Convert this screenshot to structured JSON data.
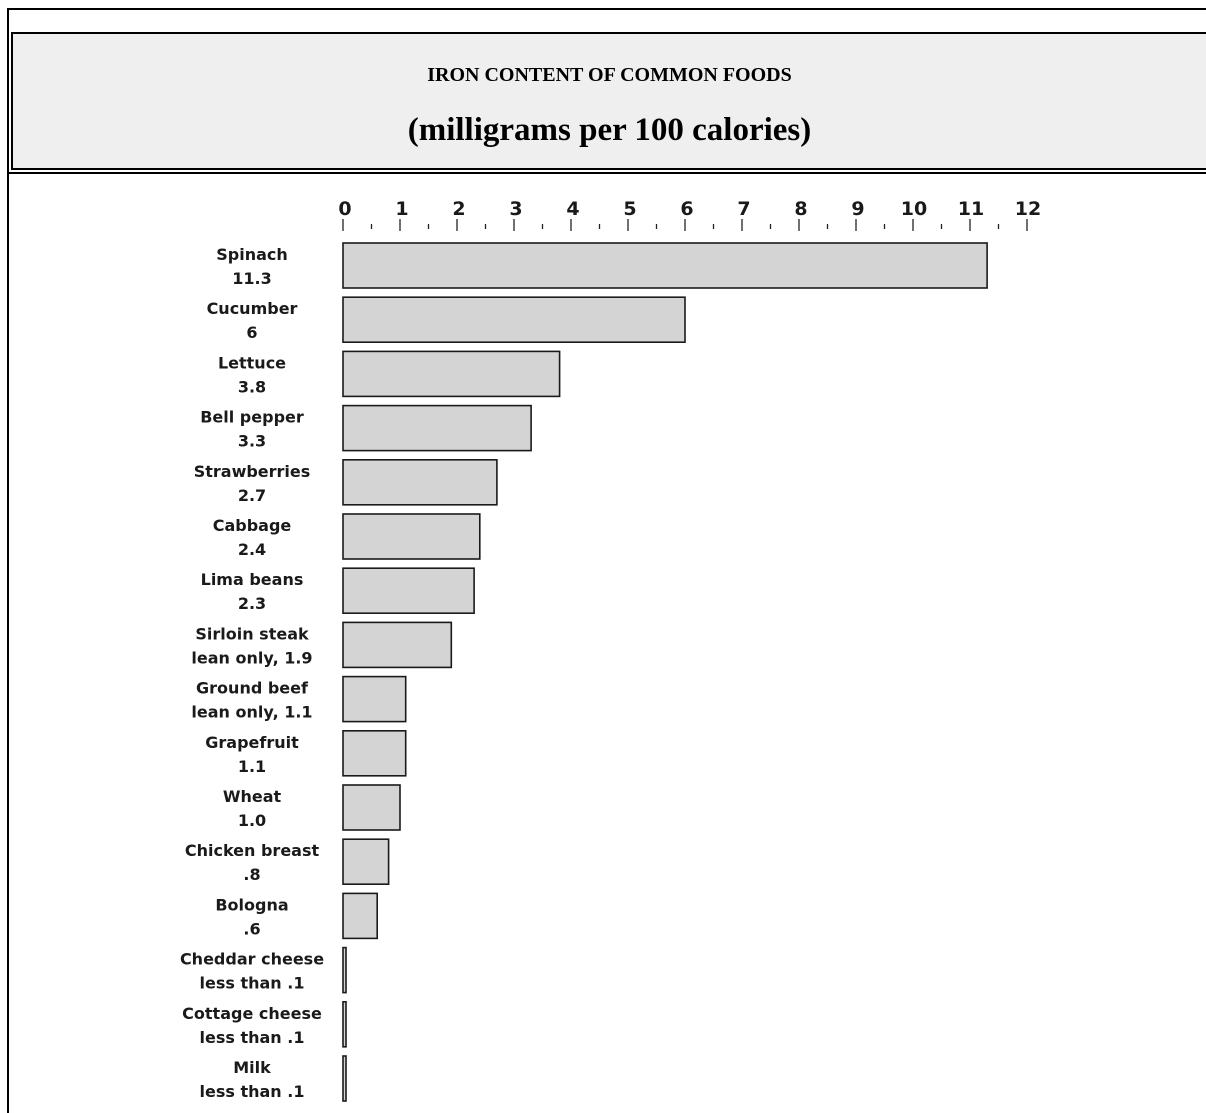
{
  "chart_data": {
    "type": "bar",
    "orientation": "horizontal",
    "title": "IRON CONTENT OF COMMON FOODS",
    "subtitle": "(milligrams per 100 calories)",
    "categories": [
      {
        "name": "Spinach",
        "value_label": "11.3"
      },
      {
        "name": "Cucumber",
        "value_label": "6"
      },
      {
        "name": "Lettuce",
        "value_label": "3.8"
      },
      {
        "name": "Bell pepper",
        "value_label": "3.3"
      },
      {
        "name": "Strawberries",
        "value_label": "2.7"
      },
      {
        "name": "Cabbage",
        "value_label": "2.4"
      },
      {
        "name": "Lima beans",
        "value_label": "2.3"
      },
      {
        "name": "Sirloin steak",
        "value_label": "lean only, 1.9"
      },
      {
        "name": "Ground beef",
        "value_label": "lean only, 1.1"
      },
      {
        "name": "Grapefruit",
        "value_label": "1.1"
      },
      {
        "name": "Wheat",
        "value_label": "1.0"
      },
      {
        "name": "Chicken breast",
        "value_label": ".8"
      },
      {
        "name": "Bologna",
        "value_label": ".6"
      },
      {
        "name": "Cheddar cheese",
        "value_label": "less than .1"
      },
      {
        "name": "Cottage cheese",
        "value_label": "less than .1"
      },
      {
        "name": "Milk",
        "value_label": "less than .1"
      }
    ],
    "values": [
      11.3,
      6,
      3.8,
      3.3,
      2.7,
      2.4,
      2.3,
      1.9,
      1.1,
      1.1,
      1.0,
      0.8,
      0.6,
      0.05,
      0.05,
      0.05
    ],
    "xlim": [
      0,
      12
    ],
    "xticks": [
      "0",
      "1",
      "2",
      "3",
      "4",
      "5",
      "6",
      "7",
      "8",
      "9",
      "10",
      "11",
      "12"
    ],
    "axis_position": "top",
    "grid": false,
    "bar_color": "#d4d4d4",
    "bar_edge_color": "#1a1a1a"
  }
}
